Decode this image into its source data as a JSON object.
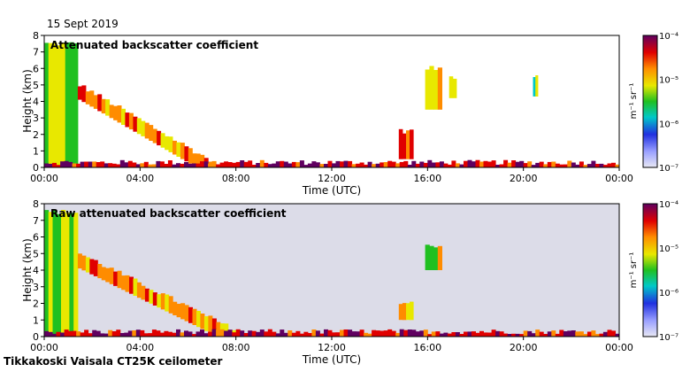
{
  "date_label": "15 Sept 2019",
  "footer": "Tikkakoski Vaisala CT25K ceilometer",
  "chart_data": [
    {
      "type": "heatmap",
      "title": "Attenuated backscatter coefficient",
      "xlabel": "Time (UTC)",
      "ylabel": "Height (km)",
      "x_ticks": [
        "00:00",
        "04:00",
        "08:00",
        "12:00",
        "16:00",
        "20:00",
        "00:00"
      ],
      "xlim_hours": [
        0,
        24
      ],
      "y_ticks": [
        "0",
        "1",
        "2",
        "3",
        "4",
        "5",
        "6",
        "7",
        "8"
      ],
      "ylim": [
        0,
        8
      ],
      "colorbar": {
        "label": "m⁻¹ sr⁻¹",
        "ticks": [
          "10⁻⁷",
          "10⁻⁶",
          "10⁻⁵",
          "10⁻⁴"
        ],
        "scale": "log",
        "range": [
          1e-07,
          0.0001
        ]
      },
      "features": [
        {
          "t_start": 0.0,
          "t_end": 1.4,
          "h_low": 0.0,
          "h_high": 7.5,
          "level": 0.55
        },
        {
          "t_start": 1.4,
          "t_end": 7.0,
          "h_low": 5.0,
          "h_high": 0.3,
          "level": 0.75
        },
        {
          "t_start": 14.8,
          "t_end": 15.4,
          "h_low": 0.5,
          "h_high": 2.2,
          "level": 0.8
        },
        {
          "t_start": 15.9,
          "t_end": 16.6,
          "h_low": 3.5,
          "h_high": 6.0,
          "level": 0.6
        },
        {
          "t_start": 16.9,
          "t_end": 17.2,
          "h_low": 4.2,
          "h_high": 5.5,
          "level": 0.55
        },
        {
          "t_start": 20.4,
          "t_end": 20.6,
          "h_low": 4.3,
          "h_high": 5.6,
          "level": 0.5
        },
        {
          "t_start": 0.0,
          "t_end": 24.0,
          "h_low": 0.0,
          "h_high": 0.3,
          "level": 0.9
        }
      ]
    },
    {
      "type": "heatmap",
      "title": "Raw attenuated backscatter coefficient",
      "xlabel": "Time (UTC)",
      "ylabel": "Height (km)",
      "x_ticks": [
        "00:00",
        "04:00",
        "08:00",
        "12:00",
        "16:00",
        "20:00",
        "00:00"
      ],
      "xlim_hours": [
        0,
        24
      ],
      "y_ticks": [
        "0",
        "1",
        "2",
        "3",
        "4",
        "5",
        "6",
        "7",
        "8"
      ],
      "ylim": [
        0,
        8
      ],
      "colorbar": {
        "label": "m⁻¹ sr⁻¹",
        "ticks": [
          "10⁻⁷",
          "10⁻⁶",
          "10⁻⁵",
          "10⁻⁴"
        ],
        "scale": "log",
        "range": [
          1e-07,
          0.0001
        ]
      },
      "features": [
        {
          "t_start": 0.0,
          "t_end": 1.4,
          "h_low": 0.0,
          "h_high": 7.5,
          "level": 0.55
        },
        {
          "t_start": 1.4,
          "t_end": 8.0,
          "h_low": 5.0,
          "h_high": 0.3,
          "level": 0.75
        },
        {
          "t_start": 14.8,
          "t_end": 15.4,
          "h_low": 1.0,
          "h_high": 2.0,
          "level": 0.7
        },
        {
          "t_start": 15.9,
          "t_end": 16.6,
          "h_low": 4.0,
          "h_high": 5.5,
          "level": 0.6
        },
        {
          "t_start": 0.0,
          "t_end": 24.0,
          "h_low": 0.0,
          "h_high": 0.3,
          "level": 0.9
        }
      ]
    }
  ]
}
